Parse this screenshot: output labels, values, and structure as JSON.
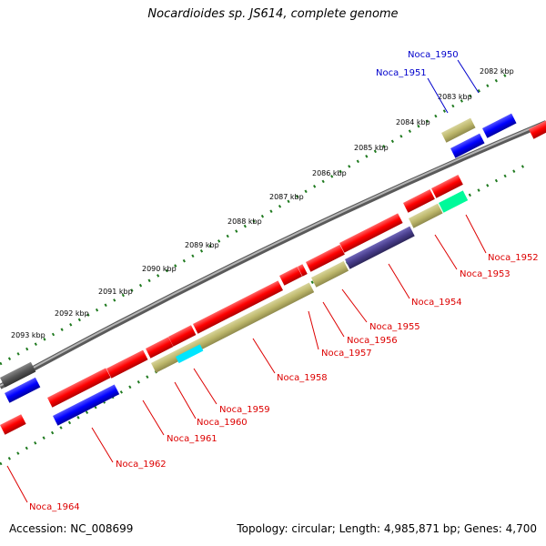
{
  "title": "Nocardioides sp. JS614, complete genome",
  "accession": "Accession: NC_008699",
  "summary": "Topology: circular; Length: 4,985,871 bp; Genes: 4,700",
  "ruler_labels": [
    "2082 kbp",
    "2083 kbp",
    "2084 kbp",
    "2085 kbp",
    "2086 kbp",
    "2087 kbp",
    "2088 kbp",
    "2089 kbp",
    "2090 kbp",
    "2091 kbp",
    "2092 kbp",
    "2093 kbp"
  ],
  "gene_labels_top": [
    "Noca_1950",
    "Noca_1951"
  ],
  "gene_labels_bottom": [
    "Noca_1952",
    "Noca_1953",
    "Noca_1954",
    "Noca_1955",
    "Noca_1956",
    "Noca_1957",
    "Noca_1958",
    "Noca_1959",
    "Noca_1960",
    "Noca_1961",
    "Noca_1962",
    "Noca_1964"
  ],
  "colors": {
    "forward_gene": "#ff0000",
    "reverse_gene": "#0000ff",
    "backbone": "#808080",
    "ruler": "#008000",
    "khaki_feature": "#bdb76b",
    "slate_feature": "#483d8b",
    "cyan_feature": "#00ffff",
    "spring_feature": "#00fa9a",
    "label_top": "#0000cc",
    "label_bottom": "#dd0000"
  }
}
